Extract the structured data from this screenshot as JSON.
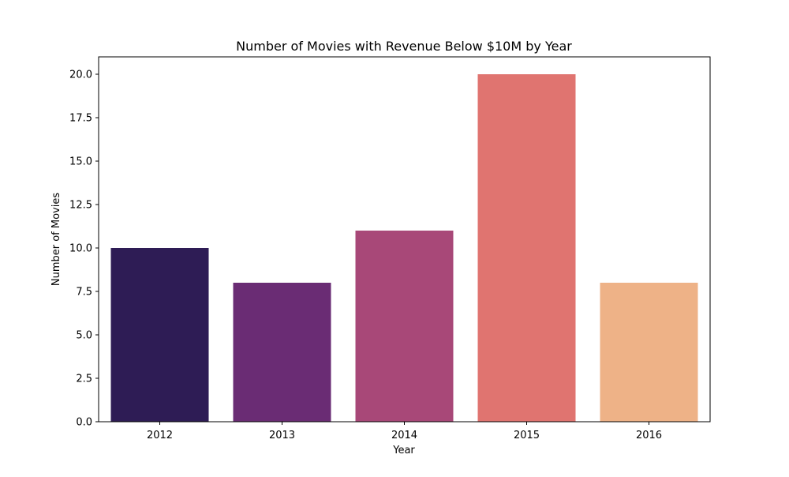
{
  "chart_data": {
    "type": "bar",
    "title": "Number of Movies with Revenue Below $10M by Year",
    "xlabel": "Year",
    "ylabel": "Number of Movies",
    "categories": [
      "2012",
      "2013",
      "2014",
      "2015",
      "2016"
    ],
    "values": [
      10,
      8,
      11,
      20,
      8
    ],
    "colors": [
      "#2e1c55",
      "#6a2c74",
      "#a84878",
      "#e07470",
      "#eeb287"
    ],
    "ylim": [
      0,
      21
    ],
    "yticks": [
      0.0,
      2.5,
      5.0,
      7.5,
      10.0,
      12.5,
      15.0,
      17.5,
      20.0
    ],
    "ytick_labels": [
      "0.0",
      "2.5",
      "5.0",
      "7.5",
      "10.0",
      "12.5",
      "15.0",
      "17.5",
      "20.0"
    ],
    "grid": false,
    "legend": "none"
  }
}
